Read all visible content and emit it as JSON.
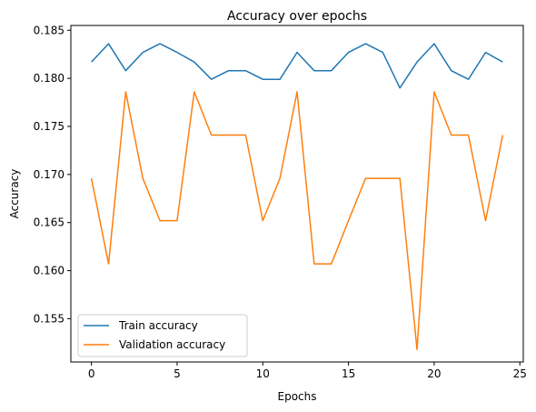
{
  "chart_data": {
    "type": "line",
    "title": "Accuracy over epochs",
    "xlabel": "Epochs",
    "ylabel": "Accuracy",
    "xlim": [
      -1.2,
      25.2
    ],
    "ylim": [
      0.1505,
      0.1855
    ],
    "xticks": [
      0,
      5,
      10,
      15,
      20,
      25
    ],
    "yticks": [
      0.155,
      0.16,
      0.165,
      0.17,
      0.175,
      0.18,
      0.185
    ],
    "ytick_labels": [
      "0.155",
      "0.160",
      "0.165",
      "0.170",
      "0.175",
      "0.180",
      "0.185"
    ],
    "grid": false,
    "legend_position": "lower-left",
    "x": [
      0,
      1,
      2,
      3,
      4,
      5,
      6,
      7,
      8,
      9,
      10,
      11,
      12,
      13,
      14,
      15,
      16,
      17,
      18,
      19,
      20,
      21,
      22,
      23,
      24
    ],
    "series": [
      {
        "name": "Train accuracy",
        "color": "#1f77b4",
        "values": [
          0.1817,
          0.1836,
          0.1808,
          0.1827,
          0.1836,
          0.1827,
          0.1817,
          0.1799,
          0.1808,
          0.1808,
          0.1799,
          0.1799,
          0.1827,
          0.1808,
          0.1808,
          0.1827,
          0.1836,
          0.1827,
          0.179,
          0.1817,
          0.1836,
          0.1808,
          0.1799,
          0.1827,
          0.1817
        ]
      },
      {
        "name": "Validation accuracy",
        "color": "#ff7f0e",
        "values": [
          0.1696,
          0.1607,
          0.1786,
          0.1696,
          0.1652,
          0.1652,
          0.1786,
          0.1741,
          0.1741,
          0.1741,
          0.1652,
          0.1696,
          0.1786,
          0.1607,
          0.1607,
          0.1652,
          0.1696,
          0.1696,
          0.1696,
          0.1518,
          0.1786,
          0.1741,
          0.1741,
          0.1652,
          0.1741
        ]
      }
    ]
  }
}
